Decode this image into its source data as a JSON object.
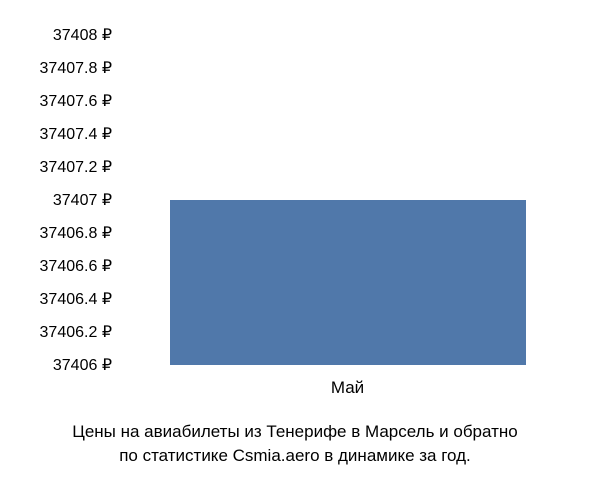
{
  "chart": {
    "type": "bar",
    "background_color": "#ffffff",
    "text_color": "#000000",
    "bar_color": "#5078aa",
    "y_axis": {
      "min": 37406,
      "max": 37408,
      "tick_step": 0.2,
      "currency_suffix": " ₽",
      "font_size": 16,
      "ticks": [
        {
          "value": 37408,
          "label": "37408 ₽"
        },
        {
          "value": 37407.8,
          "label": "37407.8 ₽"
        },
        {
          "value": 37407.6,
          "label": "37407.6 ₽"
        },
        {
          "value": 37407.4,
          "label": "37407.4 ₽"
        },
        {
          "value": 37407.2,
          "label": "37407.2 ₽"
        },
        {
          "value": 37407,
          "label": "37407 ₽"
        },
        {
          "value": 37406.8,
          "label": "37406.8 ₽"
        },
        {
          "value": 37406.6,
          "label": "37406.6 ₽"
        },
        {
          "value": 37406.4,
          "label": "37406.4 ₽"
        },
        {
          "value": 37406.2,
          "label": "37406.2 ₽"
        },
        {
          "value": 37406,
          "label": "37406 ₽"
        }
      ]
    },
    "x_axis": {
      "font_size": 17,
      "categories": [
        {
          "label": "Май",
          "position_pct": 50
        }
      ]
    },
    "bars": [
      {
        "category": "Май",
        "value": 37407,
        "left_pct": 10,
        "width_pct": 80
      }
    ],
    "caption": {
      "line1": "Цены на авиабилеты из Тенерифе в Марсель и обратно",
      "line2": "по статистике Csmia.aero в динамике за год.",
      "font_size": 17
    }
  }
}
